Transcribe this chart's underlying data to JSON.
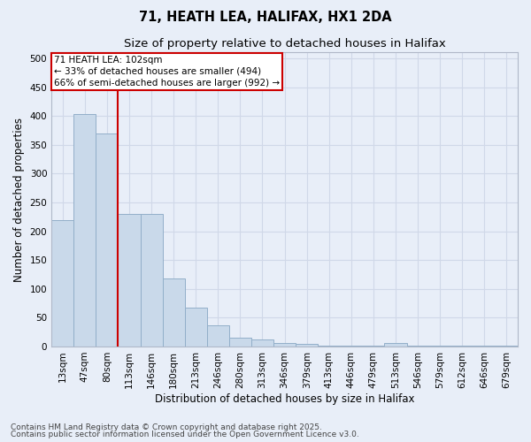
{
  "title1": "71, HEATH LEA, HALIFAX, HX1 2DA",
  "title2": "Size of property relative to detached houses in Halifax",
  "xlabel": "Distribution of detached houses by size in Halifax",
  "ylabel": "Number of detached properties",
  "categories": [
    "13sqm",
    "47sqm",
    "80sqm",
    "113sqm",
    "146sqm",
    "180sqm",
    "213sqm",
    "246sqm",
    "280sqm",
    "313sqm",
    "346sqm",
    "379sqm",
    "413sqm",
    "446sqm",
    "479sqm",
    "513sqm",
    "546sqm",
    "579sqm",
    "612sqm",
    "646sqm",
    "679sqm"
  ],
  "values": [
    220,
    403,
    370,
    230,
    230,
    118,
    68,
    36,
    15,
    12,
    6,
    5,
    1,
    1,
    1,
    6,
    1,
    1,
    1,
    1,
    1
  ],
  "bar_color": "#c9d9ea",
  "bar_edge_color": "#92afc9",
  "vline_x": 2.5,
  "vline_color": "#cc0000",
  "annotation_text": "71 HEATH LEA: 102sqm\n← 33% of detached houses are smaller (494)\n66% of semi-detached houses are larger (992) →",
  "annotation_box_color": "#ffffff",
  "annotation_box_edge": "#cc0000",
  "ylim": [
    0,
    510
  ],
  "yticks": [
    0,
    50,
    100,
    150,
    200,
    250,
    300,
    350,
    400,
    450,
    500
  ],
  "bg_color": "#e8eef8",
  "plot_bg_color": "#e8eef8",
  "grid_color": "#d0d8e8",
  "footer1": "Contains HM Land Registry data © Crown copyright and database right 2025.",
  "footer2": "Contains public sector information licensed under the Open Government Licence v3.0.",
  "title1_fontsize": 10.5,
  "title2_fontsize": 9.5,
  "xlabel_fontsize": 8.5,
  "ylabel_fontsize": 8.5,
  "tick_fontsize": 7.5,
  "annotation_fontsize": 7.5,
  "footer_fontsize": 6.5
}
